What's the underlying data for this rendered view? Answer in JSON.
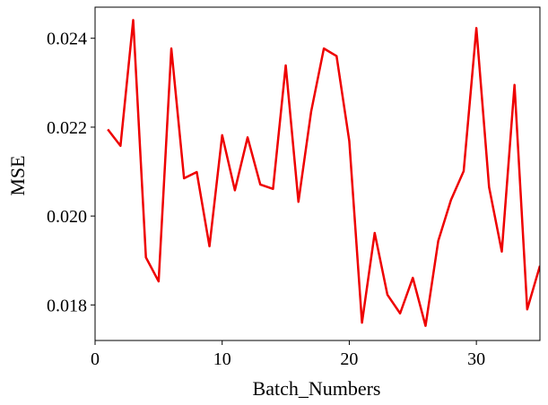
{
  "chart_data": {
    "type": "line",
    "xlabel": "Batch_Numbers",
    "ylabel": "MSE",
    "xlim": [
      0,
      35
    ],
    "ylim": [
      0.0172,
      0.0247
    ],
    "xticks": [
      0,
      10,
      20,
      30
    ],
    "xtick_labels": [
      "0",
      "10",
      "20",
      "30"
    ],
    "yticks": [
      0.018,
      0.02,
      0.022,
      0.024
    ],
    "ytick_labels": [
      "0.018",
      "0.020",
      "0.022",
      "0.024"
    ],
    "grid": false,
    "series": [
      {
        "color": "#ee0000",
        "x": [
          1,
          2,
          3,
          4,
          5,
          6,
          7,
          8,
          9,
          10,
          11,
          12,
          13,
          14,
          15,
          16,
          17,
          18,
          19,
          20,
          21,
          22,
          23,
          24,
          25,
          26,
          27,
          28,
          29,
          30,
          31,
          32,
          33,
          34,
          35
        ],
        "y": [
          0.02195,
          0.02158,
          0.02441,
          0.01907,
          0.01853,
          0.02377,
          0.02085,
          0.02099,
          0.01932,
          0.02182,
          0.02058,
          0.02177,
          0.02071,
          0.02061,
          0.02339,
          0.02032,
          0.02235,
          0.02377,
          0.0236,
          0.02169,
          0.0176,
          0.01962,
          0.01823,
          0.01781,
          0.01861,
          0.01753,
          0.01944,
          0.02036,
          0.02101,
          0.02423,
          0.02065,
          0.0192,
          0.02295,
          0.0179,
          0.01888
        ]
      }
    ]
  }
}
